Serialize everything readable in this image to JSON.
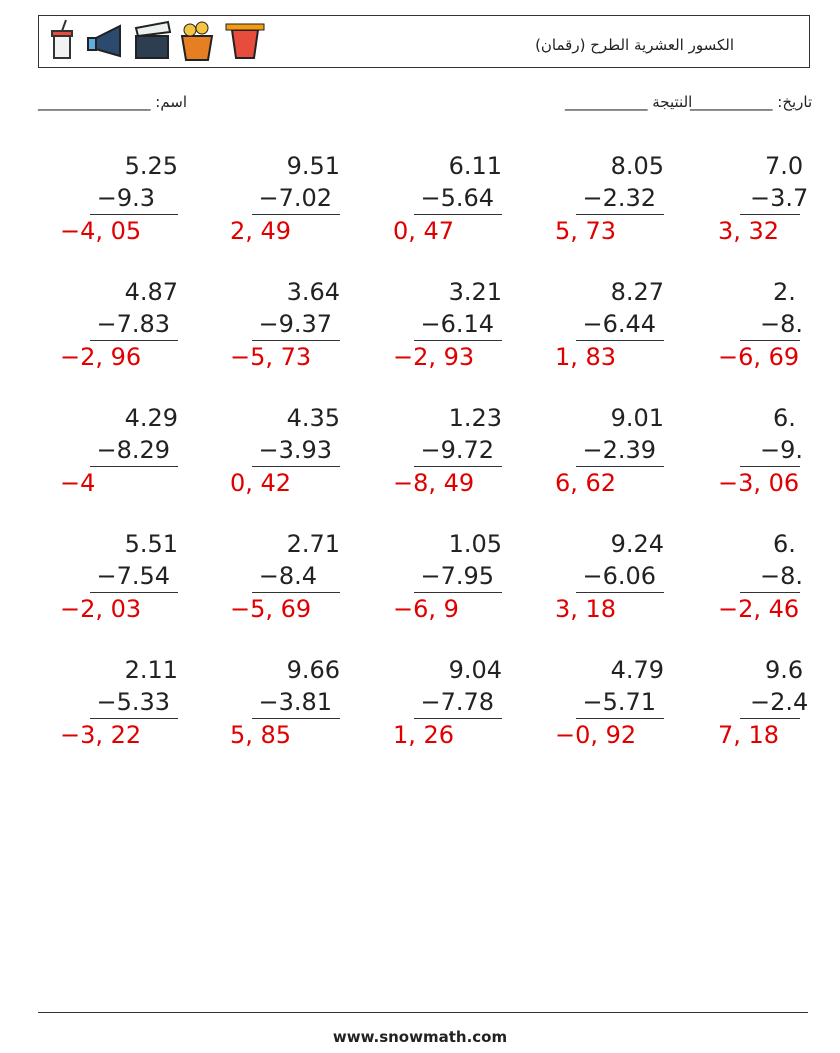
{
  "header": {
    "title": "الكسور العشرية الطرح (رقمان)"
  },
  "info": {
    "name": "اسم: _______________",
    "date": "تاريخ: ___________",
    "score": "النتيجة ___________"
  },
  "problems": [
    [
      {
        "top": "5.25",
        "bottom": "−9.3",
        "answer": "−4, 05"
      },
      {
        "top": "9.51",
        "bottom": "−7.02",
        "answer": "2, 49"
      },
      {
        "top": "6.11",
        "bottom": "−5.64",
        "answer": "0, 47"
      },
      {
        "top": "8.05",
        "bottom": "−2.32",
        "answer": "5, 73"
      },
      {
        "top": "7.0",
        "bottom": "−3.7",
        "answer": "3, 32"
      }
    ],
    [
      {
        "top": "4.87",
        "bottom": "−7.83",
        "answer": "−2, 96"
      },
      {
        "top": "3.64",
        "bottom": "−9.37",
        "answer": "−5, 73"
      },
      {
        "top": "3.21",
        "bottom": "−6.14",
        "answer": "−2, 93"
      },
      {
        "top": "8.27",
        "bottom": "−6.44",
        "answer": "1, 83"
      },
      {
        "top": "2.",
        "bottom": "−8.",
        "answer": "−6, 69"
      }
    ],
    [
      {
        "top": "4.29",
        "bottom": "−8.29",
        "answer": "−4"
      },
      {
        "top": "4.35",
        "bottom": "−3.93",
        "answer": "0, 42"
      },
      {
        "top": "1.23",
        "bottom": "−9.72",
        "answer": "−8, 49"
      },
      {
        "top": "9.01",
        "bottom": "−2.39",
        "answer": "6, 62"
      },
      {
        "top": "6.",
        "bottom": "−9.",
        "answer": "−3, 06"
      }
    ],
    [
      {
        "top": "5.51",
        "bottom": "−7.54",
        "answer": "−2, 03"
      },
      {
        "top": "2.71",
        "bottom": "−8.4",
        "answer": "−5, 69"
      },
      {
        "top": "1.05",
        "bottom": "−7.95",
        "answer": "−6, 9"
      },
      {
        "top": "9.24",
        "bottom": "−6.06",
        "answer": "3, 18"
      },
      {
        "top": "6.",
        "bottom": "−8.",
        "answer": "−2, 46"
      }
    ],
    [
      {
        "top": "2.11",
        "bottom": "−5.33",
        "answer": "−3, 22"
      },
      {
        "top": "9.66",
        "bottom": "−3.81",
        "answer": "5, 85"
      },
      {
        "top": "9.04",
        "bottom": "−7.78",
        "answer": "1, 26"
      },
      {
        "top": "4.79",
        "bottom": "−5.71",
        "answer": "−0, 92"
      },
      {
        "top": "9.6",
        "bottom": "−2.4",
        "answer": "7, 18"
      }
    ]
  ],
  "footer": {
    "site": "www.snowmath.com"
  }
}
